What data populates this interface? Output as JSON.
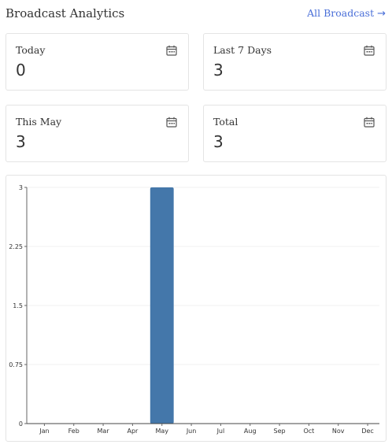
{
  "header": {
    "title": "Broadcast Analytics",
    "all_link_label": "All Broadcast",
    "all_link_icon": "arrow-right-icon"
  },
  "cards": [
    {
      "label": "Today",
      "value": "0",
      "icon": "calendar-icon"
    },
    {
      "label": "Last 7 Days",
      "value": "3",
      "icon": "calendar-icon"
    },
    {
      "label": "This May",
      "value": "3",
      "icon": "calendar-icon"
    },
    {
      "label": "Total",
      "value": "3",
      "icon": "calendar-icon"
    }
  ],
  "chart_data": {
    "type": "bar",
    "categories": [
      "Jan",
      "Feb",
      "Mar",
      "Apr",
      "May",
      "Jun",
      "Jul",
      "Aug",
      "Sep",
      "Oct",
      "Nov",
      "Dec"
    ],
    "values": [
      0,
      0,
      0,
      0,
      3,
      0,
      0,
      0,
      0,
      0,
      0,
      0
    ],
    "yticks": [
      "0",
      "0.75",
      "1.5",
      "2.25",
      "3"
    ],
    "ylim": [
      0,
      3
    ],
    "title": "",
    "xlabel": "",
    "ylabel": "",
    "bar_color": "#4477aa",
    "grid": true
  }
}
